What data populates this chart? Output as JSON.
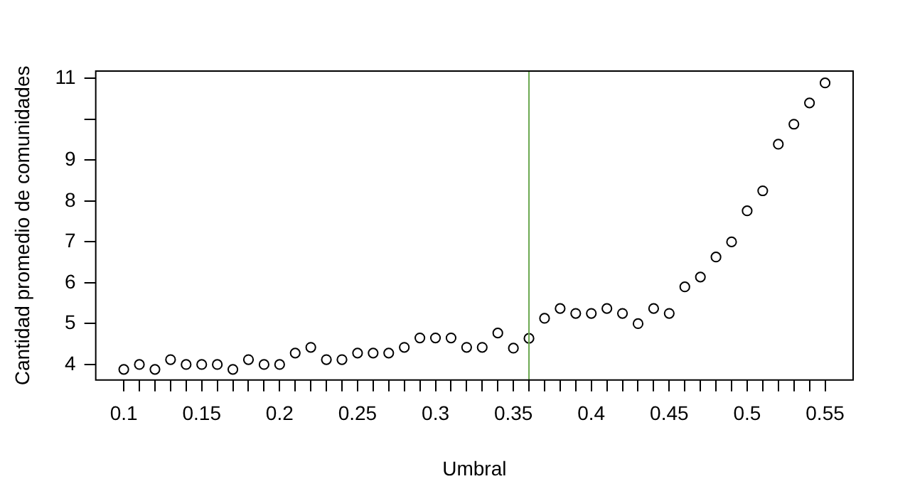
{
  "chart_data": {
    "type": "scatter",
    "xlabel": "Umbral",
    "ylabel": "Cantidad promedio de comunidades",
    "x": [
      0.1,
      0.11,
      0.12,
      0.13,
      0.14,
      0.15,
      0.16,
      0.17,
      0.18,
      0.19,
      0.2,
      0.21,
      0.22,
      0.23,
      0.24,
      0.25,
      0.26,
      0.27,
      0.28,
      0.29,
      0.3,
      0.31,
      0.32,
      0.33,
      0.34,
      0.35,
      0.36,
      0.37,
      0.38,
      0.39,
      0.4,
      0.41,
      0.42,
      0.43,
      0.44,
      0.45,
      0.46,
      0.47,
      0.48,
      0.49,
      0.5,
      0.51,
      0.52,
      0.53,
      0.54,
      0.55
    ],
    "series": [
      {
        "color": "#000000",
        "values": [
          3.88,
          4.0,
          3.88,
          4.12,
          4.0,
          4.0,
          4.0,
          3.88,
          4.12,
          4.0,
          4.0,
          4.28,
          4.42,
          4.12,
          4.12,
          4.28,
          4.28,
          4.28,
          4.42,
          4.65,
          4.65,
          4.65,
          4.42,
          4.42,
          4.77,
          4.4,
          4.64,
          5.13,
          5.37,
          5.25,
          5.25,
          5.37,
          5.25,
          5.0,
          5.37,
          5.25,
          5.9,
          6.14,
          6.63,
          7.0,
          7.76,
          8.25,
          9.39,
          9.88,
          10.4,
          10.89
        ]
      }
    ],
    "marker": "circle",
    "grid": false,
    "legend": false,
    "xlim": [
      0.082,
      0.568
    ],
    "ylim": [
      3.62,
      11.18
    ],
    "xticks": [
      0.1,
      {
        "value": 0.11,
        "label": null
      },
      {
        "value": 0.12,
        "label": null
      },
      {
        "value": 0.13,
        "label": null
      },
      {
        "value": 0.14,
        "label": null
      },
      0.15,
      {
        "value": 0.16,
        "label": null
      },
      {
        "value": 0.17,
        "label": null
      },
      {
        "value": 0.18,
        "label": null
      },
      {
        "value": 0.19,
        "label": null
      },
      0.2,
      {
        "value": 0.21,
        "label": null
      },
      {
        "value": 0.22,
        "label": null
      },
      {
        "value": 0.23,
        "label": null
      },
      {
        "value": 0.24,
        "label": null
      },
      0.25,
      {
        "value": 0.26,
        "label": null
      },
      {
        "value": 0.27,
        "label": null
      },
      {
        "value": 0.28,
        "label": null
      },
      {
        "value": 0.29,
        "label": null
      },
      0.3,
      {
        "value": 0.31,
        "label": null
      },
      {
        "value": 0.32,
        "label": null
      },
      {
        "value": 0.33,
        "label": null
      },
      {
        "value": 0.34,
        "label": null
      },
      0.35,
      {
        "value": 0.36,
        "label": null
      },
      {
        "value": 0.37,
        "label": null
      },
      {
        "value": 0.38,
        "label": null
      },
      {
        "value": 0.39,
        "label": null
      },
      0.4,
      {
        "value": 0.41,
        "label": null
      },
      {
        "value": 0.42,
        "label": null
      },
      {
        "value": 0.43,
        "label": null
      },
      {
        "value": 0.44,
        "label": null
      },
      0.45,
      {
        "value": 0.46,
        "label": null
      },
      {
        "value": 0.47,
        "label": null
      },
      {
        "value": 0.48,
        "label": null
      },
      {
        "value": 0.49,
        "label": null
      },
      0.5,
      {
        "value": 0.51,
        "label": null
      },
      {
        "value": 0.52,
        "label": null
      },
      {
        "value": 0.53,
        "label": null
      },
      {
        "value": 0.54,
        "label": null
      },
      0.55
    ],
    "yticks": [
      4,
      5,
      6,
      7,
      8,
      9,
      {
        "value": 10,
        "label": null
      },
      11
    ],
    "ref_lines": [
      {
        "axis": "x",
        "value": 0.36,
        "color": "#6aa84f"
      }
    ]
  }
}
